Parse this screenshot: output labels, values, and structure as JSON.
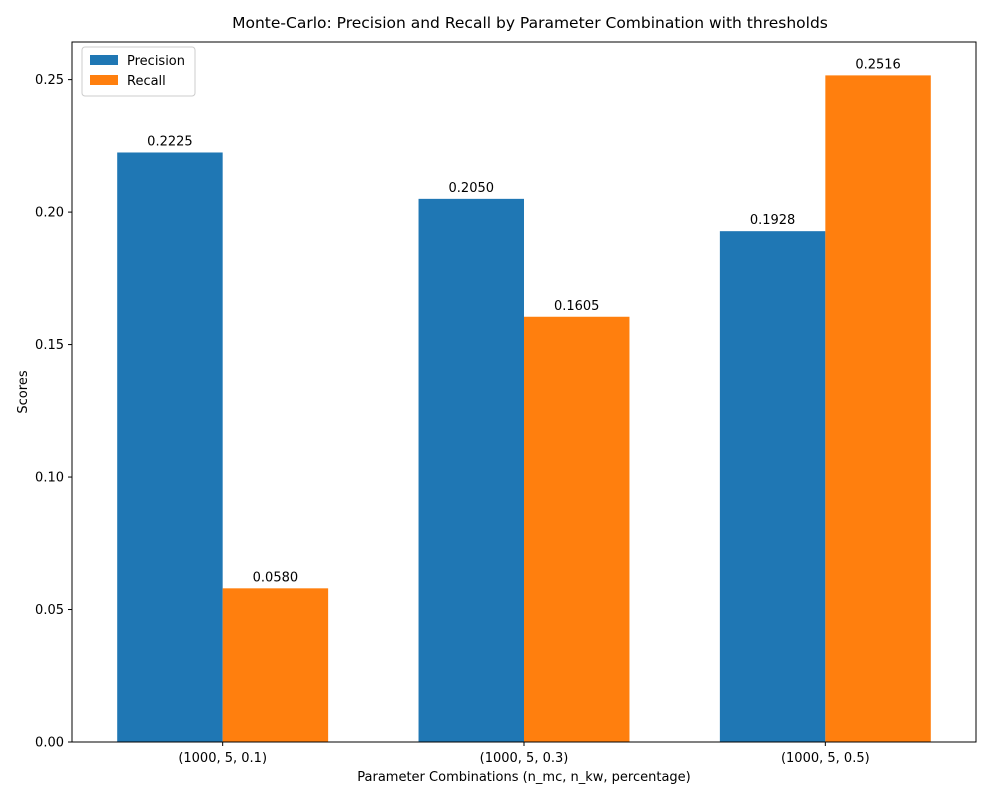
{
  "chart_data": {
    "type": "bar",
    "title": "Monte-Carlo: Precision and Recall by Parameter Combination with thresholds",
    "xlabel": "Parameter Combinations (n_mc, n_kw, percentage)",
    "ylabel": "Scores",
    "categories": [
      "(1000, 5, 0.1)",
      "(1000, 5, 0.3)",
      "(1000, 5, 0.5)"
    ],
    "series": [
      {
        "name": "Precision",
        "values": [
          0.2225,
          0.205,
          0.1928
        ],
        "color": "#1f77b4",
        "labels": [
          "0.2225",
          "0.2050",
          "0.1928"
        ]
      },
      {
        "name": "Recall",
        "values": [
          0.058,
          0.1605,
          0.2516
        ],
        "color": "#ff7f0e",
        "labels": [
          "0.0580",
          "0.1605",
          "0.2516"
        ]
      }
    ],
    "ylim": [
      0,
      0.2642
    ],
    "yticks": [
      0.0,
      0.05,
      0.1,
      0.15,
      0.2,
      0.25
    ],
    "ytick_labels": [
      "0.00",
      "0.05",
      "0.10",
      "0.15",
      "0.20",
      "0.25"
    ],
    "legend_position": "top-left",
    "grid": false
  }
}
